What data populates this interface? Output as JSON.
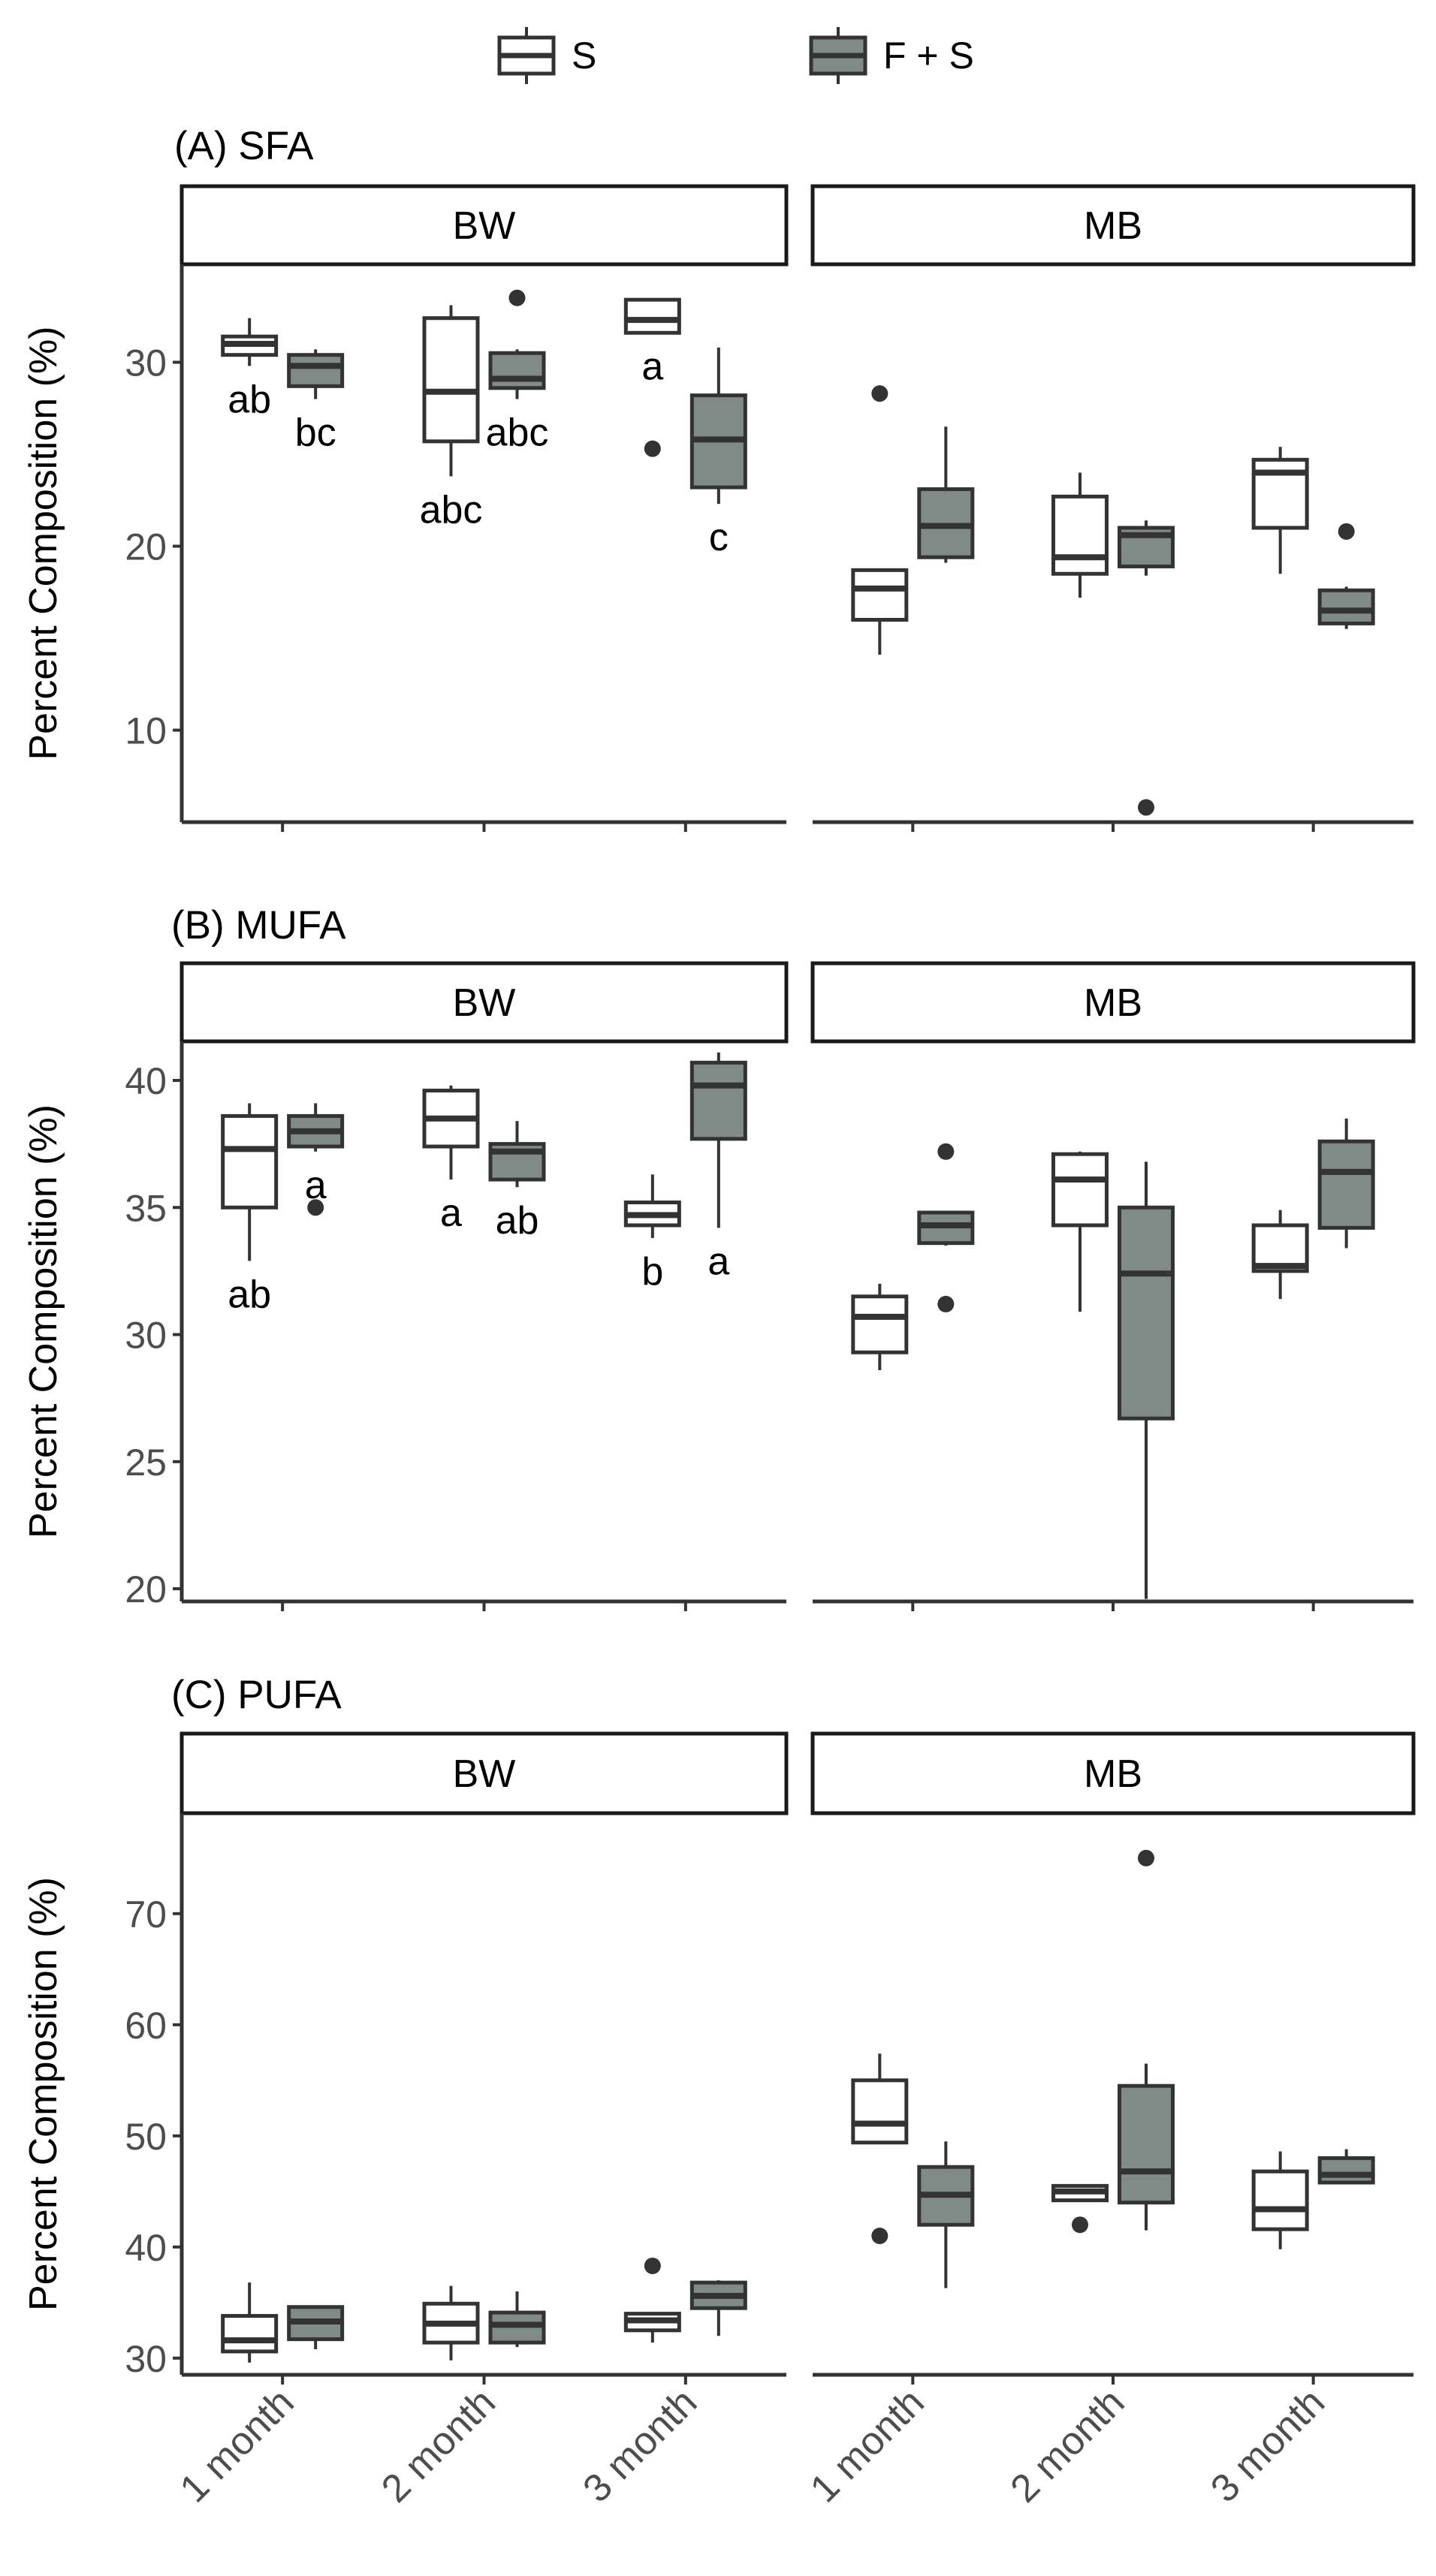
{
  "legend": {
    "items": [
      {
        "label": "S",
        "color": "#ffffff"
      },
      {
        "label": "F + S",
        "color": "#808a87"
      }
    ]
  },
  "colors": {
    "S": "#ffffff",
    "FS": "#808a87",
    "line": "#333333"
  },
  "chart_data": [
    {
      "type": "box",
      "title": "(A) SFA",
      "ylabel": "Percent Composition (%)",
      "ylim": [
        5,
        35
      ],
      "yticks": [
        10,
        20,
        30
      ],
      "categories": [
        "1  month",
        "2  month",
        "3  month"
      ],
      "series_names": [
        "S",
        "F + S"
      ],
      "facets": [
        {
          "name": "BW",
          "groups": [
            {
              "series": "S",
              "category": "1  month",
              "min": 29.8,
              "q1": 30.4,
              "median": 31.0,
              "q3": 31.4,
              "max": 32.4,
              "outliers": [],
              "label": "ab"
            },
            {
              "series": "F + S",
              "category": "1  month",
              "min": 28.0,
              "q1": 28.7,
              "median": 29.8,
              "q3": 30.4,
              "max": 30.7,
              "outliers": [],
              "label": "bc"
            },
            {
              "series": "S",
              "category": "2  month",
              "min": 23.8,
              "q1": 25.7,
              "median": 28.4,
              "q3": 32.4,
              "max": 33.1,
              "outliers": [],
              "label": "abc"
            },
            {
              "series": "F + S",
              "category": "2  month",
              "min": 28.0,
              "q1": 28.6,
              "median": 29.1,
              "q3": 30.5,
              "max": 30.7,
              "outliers": [
                33.5
              ],
              "label": "abc"
            },
            {
              "series": "S",
              "category": "3  month",
              "min": 31.6,
              "q1": 31.6,
              "median": 32.3,
              "q3": 33.4,
              "max": 33.4,
              "outliers": [
                25.3
              ],
              "label": "a"
            },
            {
              "series": "F + S",
              "category": "3  month",
              "min": 22.3,
              "q1": 23.2,
              "median": 25.8,
              "q3": 28.2,
              "max": 30.8,
              "outliers": [],
              "label": "c"
            }
          ]
        },
        {
          "name": "MB",
          "groups": [
            {
              "series": "S",
              "category": "1  month",
              "min": 14.1,
              "q1": 16.0,
              "median": 17.7,
              "q3": 18.7,
              "max": 18.7,
              "outliers": [
                28.3
              ],
              "label": ""
            },
            {
              "series": "F + S",
              "category": "1  month",
              "min": 19.1,
              "q1": 19.4,
              "median": 21.1,
              "q3": 23.1,
              "max": 26.5,
              "outliers": [],
              "label": ""
            },
            {
              "series": "S",
              "category": "2  month",
              "min": 17.2,
              "q1": 18.5,
              "median": 19.4,
              "q3": 22.7,
              "max": 24.0,
              "outliers": [],
              "label": ""
            },
            {
              "series": "F + S",
              "category": "2  month",
              "min": 18.4,
              "q1": 18.9,
              "median": 20.6,
              "q3": 21.0,
              "max": 21.4,
              "outliers": [
                5.8
              ],
              "label": ""
            },
            {
              "series": "S",
              "category": "3  month",
              "min": 18.5,
              "q1": 21.0,
              "median": 24.0,
              "q3": 24.7,
              "max": 25.4,
              "outliers": [],
              "label": ""
            },
            {
              "series": "F + S",
              "category": "3  month",
              "min": 15.5,
              "q1": 15.8,
              "median": 16.5,
              "q3": 17.6,
              "max": 17.8,
              "outliers": [
                20.8
              ],
              "label": ""
            }
          ]
        }
      ]
    },
    {
      "type": "box",
      "title": "(B) MUFA",
      "ylabel": "Percent Composition (%)",
      "ylim": [
        19.5,
        41.3
      ],
      "yticks": [
        20,
        25,
        30,
        35,
        40
      ],
      "categories": [
        "1  month",
        "2  month",
        "3  month"
      ],
      "series_names": [
        "S",
        "F + S"
      ],
      "facets": [
        {
          "name": "BW",
          "groups": [
            {
              "series": "S",
              "category": "1  month",
              "min": 32.9,
              "q1": 35.0,
              "median": 37.3,
              "q3": 38.6,
              "max": 39.1,
              "outliers": [],
              "label": "ab"
            },
            {
              "series": "F + S",
              "category": "1  month",
              "min": 37.2,
              "q1": 37.4,
              "median": 38.0,
              "q3": 38.6,
              "max": 39.1,
              "outliers": [
                35.0
              ],
              "label": "a"
            },
            {
              "series": "S",
              "category": "2  month",
              "min": 36.1,
              "q1": 37.4,
              "median": 38.5,
              "q3": 39.6,
              "max": 39.8,
              "outliers": [],
              "label": "a"
            },
            {
              "series": "F + S",
              "category": "2  month",
              "min": 35.8,
              "q1": 36.1,
              "median": 37.2,
              "q3": 37.5,
              "max": 38.4,
              "outliers": [],
              "label": "ab"
            },
            {
              "series": "S",
              "category": "3  month",
              "min": 33.8,
              "q1": 34.3,
              "median": 34.7,
              "q3": 35.2,
              "max": 36.3,
              "outliers": [],
              "label": "b"
            },
            {
              "series": "F + S",
              "category": "3  month",
              "min": 34.2,
              "q1": 37.7,
              "median": 39.8,
              "q3": 40.7,
              "max": 41.1,
              "outliers": [],
              "label": "a"
            }
          ]
        },
        {
          "name": "MB",
          "groups": [
            {
              "series": "S",
              "category": "1  month",
              "min": 28.6,
              "q1": 29.3,
              "median": 30.7,
              "q3": 31.5,
              "max": 32.0,
              "outliers": [],
              "label": ""
            },
            {
              "series": "F + S",
              "category": "1  month",
              "min": 33.5,
              "q1": 33.6,
              "median": 34.3,
              "q3": 34.8,
              "max": 34.8,
              "outliers": [
                37.2,
                31.2
              ],
              "label": ""
            },
            {
              "series": "S",
              "category": "2  month",
              "min": 30.9,
              "q1": 34.3,
              "median": 36.1,
              "q3": 37.1,
              "max": 37.2,
              "outliers": [],
              "label": ""
            },
            {
              "series": "F + S",
              "category": "2  month",
              "min": 19.6,
              "q1": 26.7,
              "median": 32.4,
              "q3": 35.0,
              "max": 36.8,
              "outliers": [],
              "label": ""
            },
            {
              "series": "S",
              "category": "3  month",
              "min": 31.4,
              "q1": 32.5,
              "median": 32.7,
              "q3": 34.3,
              "max": 34.9,
              "outliers": [],
              "label": ""
            },
            {
              "series": "F + S",
              "category": "3  month",
              "min": 33.4,
              "q1": 34.2,
              "median": 36.4,
              "q3": 37.6,
              "max": 38.5,
              "outliers": [],
              "label": ""
            }
          ]
        }
      ]
    },
    {
      "type": "box",
      "title": "(C) PUFA",
      "ylabel": "Percent Composition (%)",
      "ylim": [
        28.5,
        78.5
      ],
      "yticks": [
        30,
        40,
        50,
        60,
        70
      ],
      "categories": [
        "1  month",
        "2  month",
        "3  month"
      ],
      "series_names": [
        "S",
        "F + S"
      ],
      "facets": [
        {
          "name": "BW",
          "groups": [
            {
              "series": "S",
              "category": "1  month",
              "min": 29.6,
              "q1": 30.6,
              "median": 31.6,
              "q3": 33.8,
              "max": 36.8,
              "outliers": [],
              "label": ""
            },
            {
              "series": "F + S",
              "category": "1  month",
              "min": 30.8,
              "q1": 31.7,
              "median": 33.3,
              "q3": 34.6,
              "max": 34.6,
              "outliers": [],
              "label": ""
            },
            {
              "series": "S",
              "category": "2  month",
              "min": 29.8,
              "q1": 31.4,
              "median": 33.1,
              "q3": 34.9,
              "max": 36.5,
              "outliers": [],
              "label": ""
            },
            {
              "series": "F + S",
              "category": "2  month",
              "min": 31.0,
              "q1": 31.4,
              "median": 33.0,
              "q3": 34.1,
              "max": 36.0,
              "outliers": [],
              "label": ""
            },
            {
              "series": "S",
              "category": "3  month",
              "min": 31.4,
              "q1": 32.5,
              "median": 33.4,
              "q3": 34.0,
              "max": 34.0,
              "outliers": [
                38.3
              ],
              "label": ""
            },
            {
              "series": "F + S",
              "category": "3  month",
              "min": 32.0,
              "q1": 34.5,
              "median": 35.6,
              "q3": 36.8,
              "max": 37.0,
              "outliers": [],
              "label": ""
            }
          ]
        },
        {
          "name": "MB",
          "groups": [
            {
              "series": "S",
              "category": "1  month",
              "min": 49.4,
              "q1": 49.4,
              "median": 51.1,
              "q3": 55.0,
              "max": 57.4,
              "outliers": [
                41.0
              ],
              "label": ""
            },
            {
              "series": "F + S",
              "category": "1  month",
              "min": 36.3,
              "q1": 42.0,
              "median": 44.7,
              "q3": 47.2,
              "max": 49.5,
              "outliers": [],
              "label": ""
            },
            {
              "series": "S",
              "category": "2  month",
              "min": 44.2,
              "q1": 44.2,
              "median": 45.0,
              "q3": 45.5,
              "max": 45.5,
              "outliers": [
                42.0
              ],
              "label": ""
            },
            {
              "series": "F + S",
              "category": "2  month",
              "min": 41.5,
              "q1": 44.0,
              "median": 46.8,
              "q3": 54.5,
              "max": 56.5,
              "outliers": [
                75.0
              ],
              "label": ""
            },
            {
              "series": "S",
              "category": "3  month",
              "min": 39.8,
              "q1": 41.6,
              "median": 43.4,
              "q3": 46.8,
              "max": 48.6,
              "outliers": [],
              "label": ""
            },
            {
              "series": "F + S",
              "category": "3  month",
              "min": 45.8,
              "q1": 45.8,
              "median": 46.5,
              "q3": 48.0,
              "max": 48.8,
              "outliers": [],
              "label": ""
            }
          ]
        }
      ]
    }
  ]
}
